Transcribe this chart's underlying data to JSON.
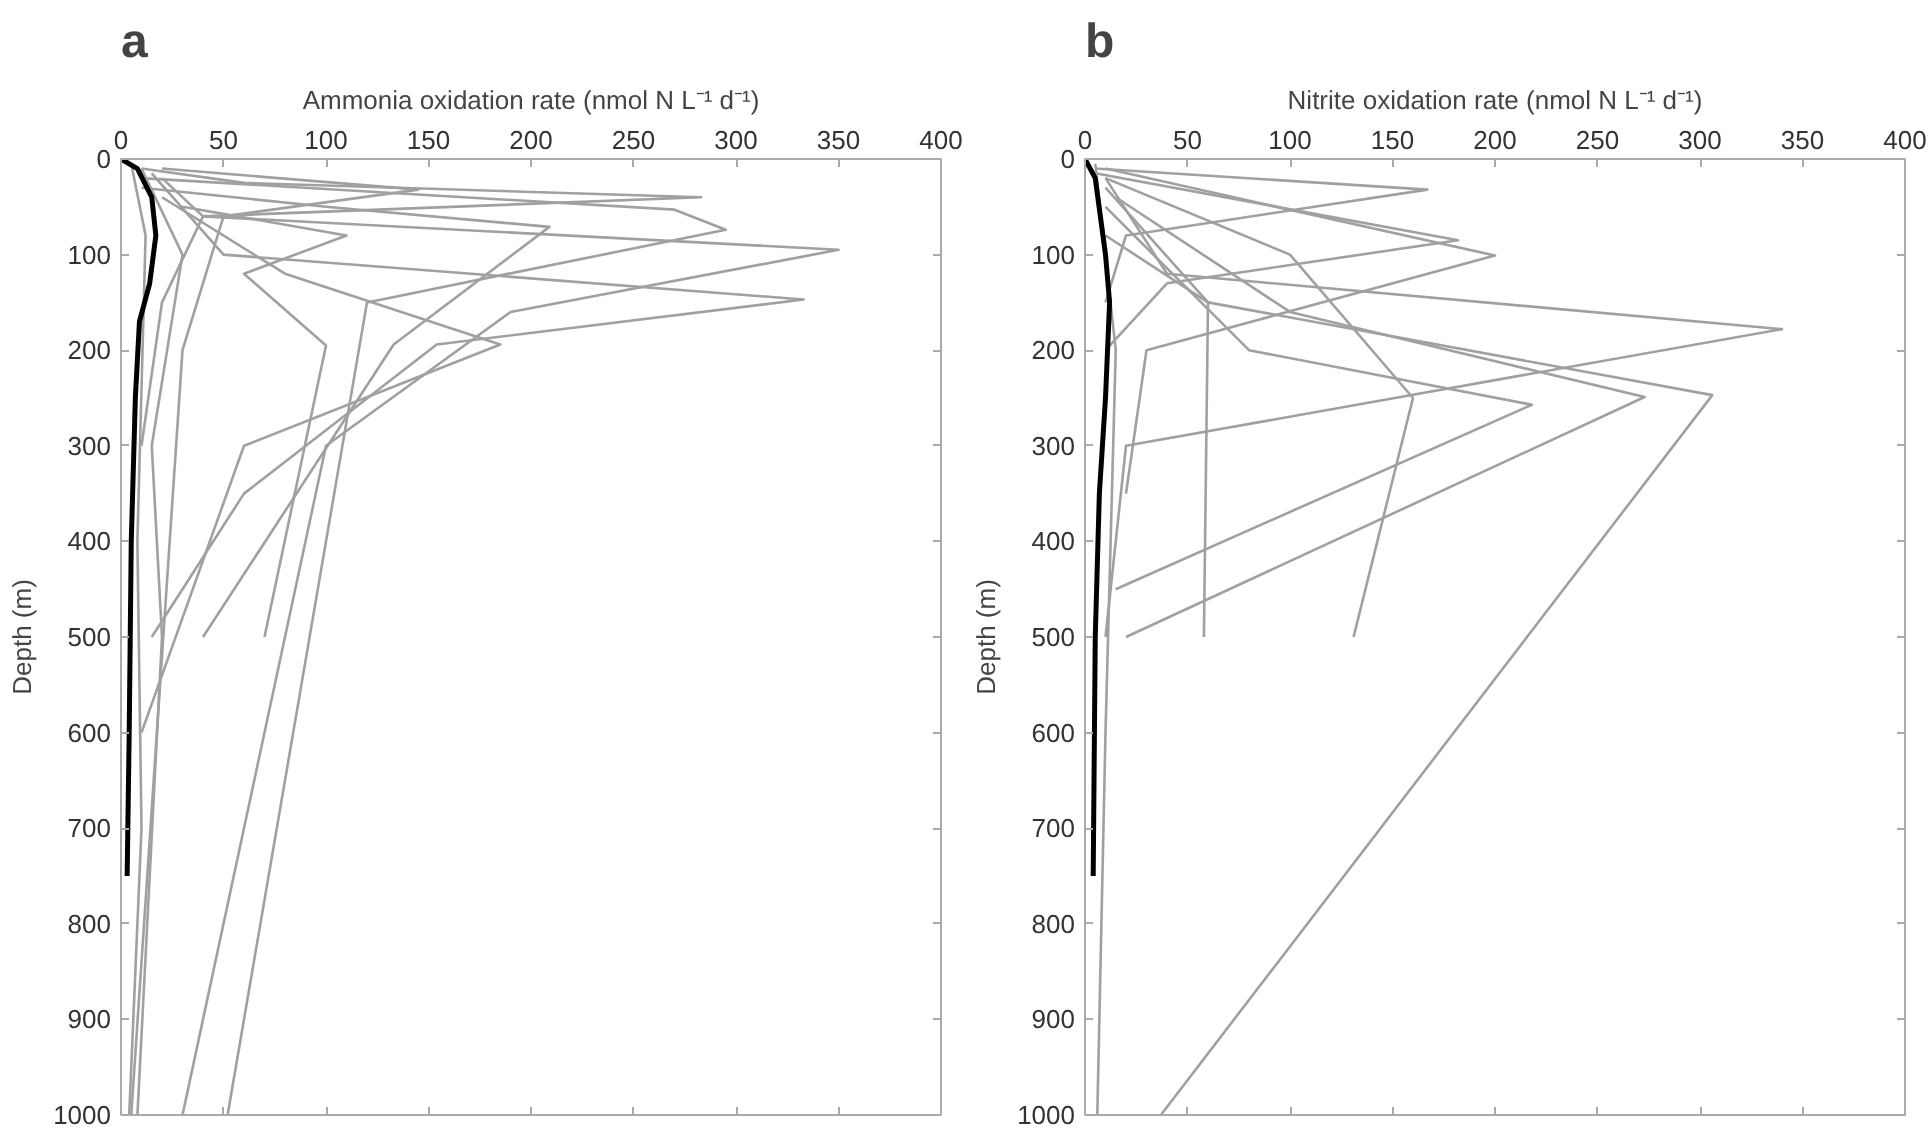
{
  "chart_data": [
    {
      "type": "line",
      "title": "a",
      "xlabel": "Ammonia oxidation rate (nmol N L⁻¹ d⁻¹)",
      "ylabel": "Depth (m)",
      "xlim": [
        0,
        400
      ],
      "ylim": [
        1000,
        0
      ],
      "xticks": [
        0,
        50,
        100,
        150,
        200,
        250,
        300,
        350,
        400
      ],
      "yticks": [
        0,
        100,
        200,
        300,
        400,
        500,
        600,
        700,
        800,
        900,
        1000
      ],
      "grid": false,
      "marker": "none",
      "line_style": "solid",
      "series": [
        {
          "color": "#a0a0a0",
          "x": [
            10,
            60,
            283,
            40,
            20,
            10
          ],
          "values": [
            10,
            25,
            40,
            60,
            150,
            300
          ]
        },
        {
          "color": "#a0a0a0",
          "x": [
            20,
            40,
            350,
            190,
            100,
            30
          ],
          "values": [
            20,
            60,
            95,
            160,
            300,
            1000
          ]
        },
        {
          "color": "#a0a0a0",
          "x": [
            15,
            50,
            333,
            154,
            60,
            15
          ],
          "values": [
            15,
            100,
            147,
            194,
            350,
            500
          ]
        },
        {
          "color": "#a0a0a0",
          "x": [
            10,
            270,
            295,
            120,
            52
          ],
          "values": [
            20,
            53,
            74,
            150,
            1000
          ]
        },
        {
          "color": "#a0a0a0",
          "x": [
            10,
            100,
            209,
            133,
            40
          ],
          "values": [
            30,
            50,
            71,
            194,
            500
          ]
        },
        {
          "color": "#a0a0a0",
          "x": [
            20,
            80,
            185,
            60,
            10
          ],
          "values": [
            40,
            120,
            194,
            300,
            600
          ]
        },
        {
          "color": "#a0a0a0",
          "x": [
            20,
            145,
            50,
            30,
            5
          ],
          "values": [
            10,
            32,
            60,
            200,
            1000
          ]
        },
        {
          "color": "#a0a0a0",
          "x": [
            30,
            110,
            60,
            100,
            70
          ],
          "values": [
            50,
            80,
            120,
            195,
            500
          ]
        },
        {
          "color": "#a0a0a0",
          "x": [
            10,
            30,
            15,
            20,
            8
          ],
          "values": [
            10,
            100,
            300,
            500,
            1000
          ]
        },
        {
          "color": "#a0a0a0",
          "x": [
            5,
            12,
            8,
            10,
            4
          ],
          "values": [
            5,
            80,
            400,
            700,
            1000
          ]
        },
        {
          "color": "#000000",
          "x": [
            0,
            8,
            15,
            17,
            14,
            9,
            7,
            5,
            4,
            3
          ],
          "values": [
            0,
            10,
            40,
            80,
            130,
            170,
            250,
            400,
            600,
            750
          ]
        }
      ]
    },
    {
      "type": "line",
      "title": "b",
      "xlabel": "Nitrite oxidation rate (nmol N L⁻¹ d⁻¹)",
      "ylabel": "Depth (m)",
      "xlim": [
        0,
        400
      ],
      "ylim": [
        1000,
        0
      ],
      "xticks": [
        0,
        50,
        100,
        150,
        200,
        250,
        300,
        350,
        400
      ],
      "yticks": [
        0,
        100,
        200,
        300,
        400,
        500,
        600,
        700,
        800,
        900,
        1000
      ],
      "grid": false,
      "marker": "none",
      "line_style": "solid",
      "series": [
        {
          "color": "#a0a0a0",
          "x": [
            10,
            40,
            340,
            20,
            10
          ],
          "values": [
            20,
            120,
            178,
            300,
            500
          ]
        },
        {
          "color": "#a0a0a0",
          "x": [
            10,
            60,
            306,
            37
          ],
          "values": [
            30,
            150,
            247,
            1000
          ]
        },
        {
          "color": "#a0a0a0",
          "x": [
            15,
            100,
            273,
            20
          ],
          "values": [
            40,
            160,
            249,
            500
          ]
        },
        {
          "color": "#a0a0a0",
          "x": [
            10,
            80,
            218,
            15
          ],
          "values": [
            50,
            200,
            257,
            450
          ]
        },
        {
          "color": "#a0a0a0",
          "x": [
            10,
            100,
            160,
            131
          ],
          "values": [
            20,
            100,
            250,
            500
          ]
        },
        {
          "color": "#a0a0a0",
          "x": [
            10,
            200,
            30,
            20
          ],
          "values": [
            10,
            101,
            200,
            350
          ]
        },
        {
          "color": "#a0a0a0",
          "x": [
            5,
            182,
            40,
            10
          ],
          "values": [
            15,
            85,
            130,
            200
          ]
        },
        {
          "color": "#a0a0a0",
          "x": [
            5,
            167,
            20,
            10
          ],
          "values": [
            10,
            32,
            80,
            150
          ]
        },
        {
          "color": "#a0a0a0",
          "x": [
            10,
            60,
            58
          ],
          "values": [
            80,
            150,
            500
          ]
        },
        {
          "color": "#a0a0a0",
          "x": [
            5,
            15,
            10,
            6
          ],
          "values": [
            5,
            200,
            600,
            1000
          ]
        },
        {
          "color": "#000000",
          "x": [
            0,
            5,
            10,
            12,
            10,
            7,
            5,
            4
          ],
          "values": [
            0,
            20,
            100,
            150,
            250,
            350,
            500,
            750
          ]
        }
      ]
    }
  ]
}
